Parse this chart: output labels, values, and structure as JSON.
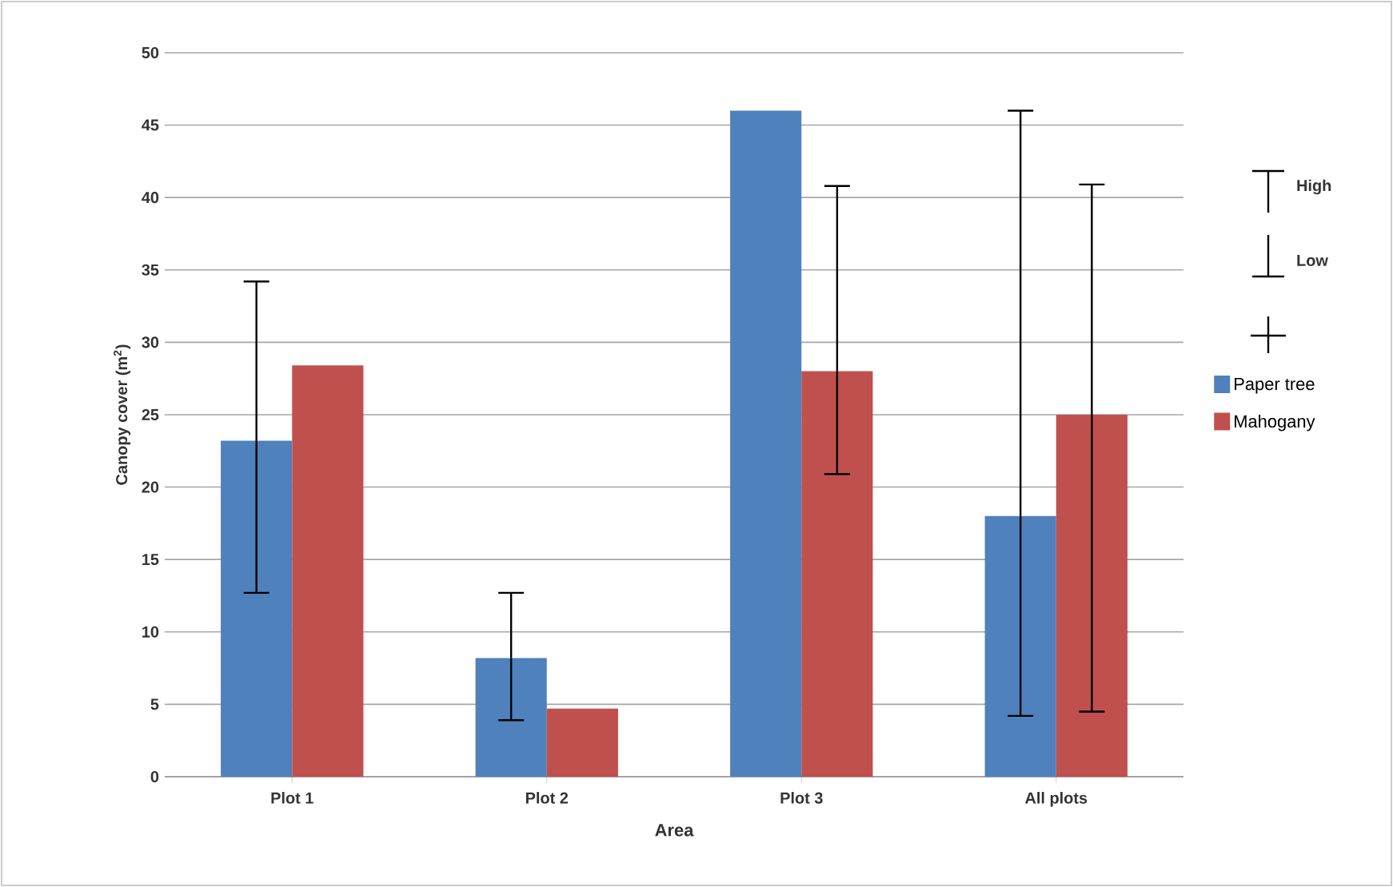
{
  "chart_data": {
    "type": "bar",
    "xlabel": "Area",
    "ylabel": "Canopy cover (m$^{2}$)",
    "categories": [
      "Plot 1",
      "Plot 2",
      "Plot 3",
      "All plots"
    ],
    "series": [
      {
        "name": "Paper tree",
        "color": "#4f81bd",
        "values": [
          23.2,
          8.2,
          46.0,
          18.0
        ],
        "errors": [
          [
            12.7,
            34.2
          ],
          [
            3.9,
            12.7
          ],
          null,
          [
            4.2,
            46.0
          ]
        ]
      },
      {
        "name": "Mahogany",
        "color": "#c0504d",
        "values": [
          28.4,
          4.7,
          28.0,
          25.0
        ],
        "errors": [
          null,
          null,
          [
            20.9,
            40.8
          ],
          [
            4.5,
            40.9
          ]
        ]
      }
    ],
    "ylim": [
      0,
      50
    ],
    "yticks": [
      0,
      5,
      10,
      15,
      20,
      25,
      30,
      35,
      40,
      45,
      50
    ],
    "grid": "y",
    "legend": "right",
    "annotations": [
      "High",
      "Low"
    ]
  }
}
